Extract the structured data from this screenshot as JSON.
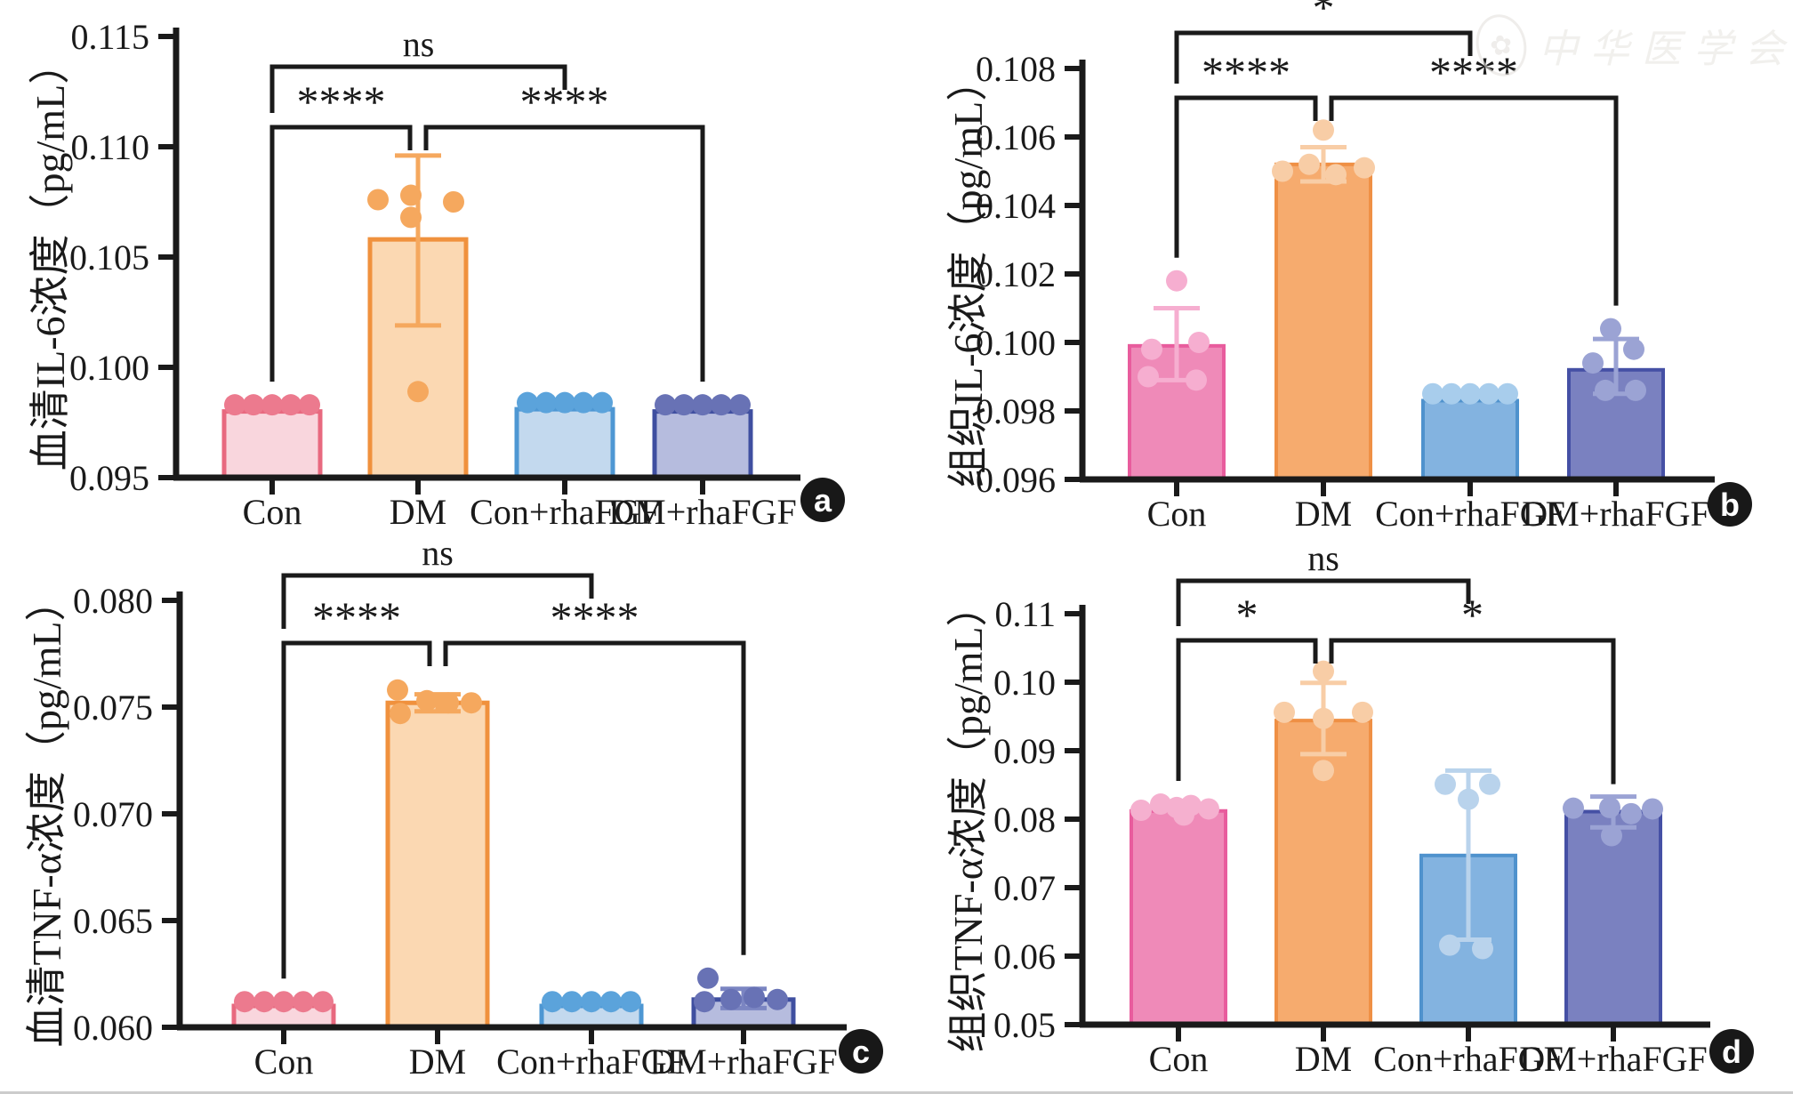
{
  "watermark": {
    "seal_icon": "seal-icon",
    "text": "中华医学会"
  },
  "panel_badges": [
    "a",
    "b",
    "c",
    "d"
  ],
  "chart_data": [
    {
      "type": "bar",
      "panel": "a",
      "ylabel": "血清IL-6浓度（pg/mL）",
      "ylim": [
        0.095,
        0.115
      ],
      "yticks": [
        {
          "v": 0.115,
          "t": "0.115"
        },
        {
          "v": 0.11,
          "t": "0.110"
        },
        {
          "v": 0.105,
          "t": "0.105"
        },
        {
          "v": 0.1,
          "t": "0.100"
        },
        {
          "v": 0.095,
          "t": "0.095"
        }
      ],
      "categories": [
        "Con",
        "DM",
        "Con+rhaFGF",
        "DM+rhaFGF"
      ],
      "values": [
        0.098,
        0.1058,
        0.0981,
        0.098
      ],
      "errors": [
        null,
        [
          0.1019,
          0.1096
        ],
        null,
        null
      ],
      "points": [
        [
          [
            -42,
            0.0983
          ],
          [
            -21,
            0.0983
          ],
          [
            0,
            0.0983
          ],
          [
            21,
            0.0983
          ],
          [
            42,
            0.0983
          ]
        ],
        [
          [
            -45,
            0.1076
          ],
          [
            -8,
            0.1078
          ],
          [
            -8,
            0.1068
          ],
          [
            40,
            0.1075
          ],
          [
            0,
            0.0989
          ]
        ],
        [
          [
            -42,
            0.0984
          ],
          [
            -21,
            0.0984
          ],
          [
            0,
            0.0984
          ],
          [
            21,
            0.0984
          ],
          [
            42,
            0.0984
          ]
        ],
        [
          [
            -42,
            0.0983
          ],
          [
            -21,
            0.0983
          ],
          [
            0,
            0.0983
          ],
          [
            21,
            0.0983
          ],
          [
            42,
            0.0983
          ]
        ]
      ],
      "colors": [
        {
          "fill": "#f9d6dd",
          "stroke": "#e8697f",
          "dot": "#ec7a8e",
          "err": "#ec7a8e"
        },
        {
          "fill": "#fbd8b2",
          "stroke": "#f0913d",
          "dot": "#f5a85e",
          "err": "#f5a85e"
        },
        {
          "fill": "#c3d9ee",
          "stroke": "#4e97d3",
          "dot": "#5ba3db",
          "err": "#5ba3db"
        },
        {
          "fill": "#b6bcde",
          "stroke": "#3f4fa0",
          "dot": "#6872b5",
          "err": "#6872b5"
        }
      ],
      "significance": [
        {
          "between": [
            "Con",
            "Con+rhaFGF"
          ],
          "label": "ns"
        },
        {
          "between": [
            "Con",
            "DM"
          ],
          "label": "****"
        },
        {
          "between": [
            "DM",
            "DM+rhaFGF"
          ],
          "label": "****"
        }
      ]
    },
    {
      "type": "bar",
      "panel": "b",
      "ylabel": "组织IL-6浓度（pg/mL）",
      "ylim": [
        0.096,
        0.108
      ],
      "yticks": [
        {
          "v": 0.108,
          "t": "0.108"
        },
        {
          "v": 0.106,
          "t": "0.106"
        },
        {
          "v": 0.104,
          "t": "0.104"
        },
        {
          "v": 0.102,
          "t": "0.102"
        },
        {
          "v": 0.1,
          "t": "0.100"
        },
        {
          "v": 0.098,
          "t": "0.098"
        },
        {
          "v": 0.096,
          "t": "0.096"
        }
      ],
      "categories": [
        "Con",
        "DM",
        "Con+rhaFGF",
        "DM+rhaFGF"
      ],
      "values": [
        0.0999,
        0.1052,
        0.0983,
        0.0992
      ],
      "errors": [
        [
          0.0989,
          0.101
        ],
        [
          0.1047,
          0.1057
        ],
        null,
        [
          0.0985,
          0.1001
        ]
      ],
      "points": [
        [
          [
            0,
            0.1018
          ],
          [
            -28,
            0.0998
          ],
          [
            25,
            0.1
          ],
          [
            -32,
            0.099
          ],
          [
            22,
            0.0989
          ]
        ],
        [
          [
            0,
            0.1062
          ],
          [
            -46,
            0.105
          ],
          [
            -16,
            0.1052
          ],
          [
            14,
            0.1049
          ],
          [
            46,
            0.1051
          ]
        ],
        [
          [
            -42,
            0.0985
          ],
          [
            -21,
            0.0985
          ],
          [
            0,
            0.0985
          ],
          [
            21,
            0.0985
          ],
          [
            42,
            0.0985
          ]
        ],
        [
          [
            -6,
            0.1004
          ],
          [
            20,
            0.0998
          ],
          [
            -26,
            0.0994
          ],
          [
            -12,
            0.0986
          ],
          [
            22,
            0.0986
          ]
        ]
      ],
      "colors": [
        {
          "fill": "#ef8ab8",
          "stroke": "#e85c9d",
          "dot": "#f6aed0",
          "err": "#f6aed0"
        },
        {
          "fill": "#f6ab6e",
          "stroke": "#ef9045",
          "dot": "#f8cda6",
          "err": "#f8cda6"
        },
        {
          "fill": "#83b3e0",
          "stroke": "#4f92cd",
          "dot": "#a8cdec",
          "err": "#a8cdec"
        },
        {
          "fill": "#7a81c0",
          "stroke": "#4550a5",
          "dot": "#9ba3d4",
          "err": "#9ba3d4"
        }
      ],
      "significance": [
        {
          "between": [
            "Con",
            "Con+rhaFGF"
          ],
          "label": "*"
        },
        {
          "between": [
            "Con",
            "DM"
          ],
          "label": "****"
        },
        {
          "between": [
            "DM",
            "DM+rhaFGF"
          ],
          "label": "****"
        }
      ]
    },
    {
      "type": "bar",
      "panel": "c",
      "ylabel": "血清TNF-α浓度（pg/mL）",
      "ylim": [
        0.06,
        0.08
      ],
      "yticks": [
        {
          "v": 0.08,
          "t": "0.080"
        },
        {
          "v": 0.075,
          "t": "0.075"
        },
        {
          "v": 0.07,
          "t": "0.070"
        },
        {
          "v": 0.065,
          "t": "0.065"
        },
        {
          "v": 0.06,
          "t": "0.060"
        }
      ],
      "categories": [
        "Con",
        "DM",
        "Con+rhaFGF",
        "DM+rhaFGF"
      ],
      "values": [
        0.061,
        0.0752,
        0.061,
        0.0613
      ],
      "errors": [
        null,
        [
          0.0748,
          0.0756
        ],
        null,
        [
          0.0609,
          0.0618
        ]
      ],
      "points": [
        [
          [
            -44,
            0.0612
          ],
          [
            -22,
            0.0612
          ],
          [
            0,
            0.0612
          ],
          [
            22,
            0.0612
          ],
          [
            44,
            0.0612
          ]
        ],
        [
          [
            -45,
            0.0758
          ],
          [
            -42,
            0.0747
          ],
          [
            -12,
            0.0753
          ],
          [
            12,
            0.0752
          ],
          [
            38,
            0.0752
          ]
        ],
        [
          [
            -44,
            0.0612
          ],
          [
            -22,
            0.0612
          ],
          [
            0,
            0.0612
          ],
          [
            22,
            0.0612
          ],
          [
            44,
            0.0612
          ]
        ],
        [
          [
            -40,
            0.0623
          ],
          [
            -44,
            0.0612
          ],
          [
            -14,
            0.0613
          ],
          [
            12,
            0.0614
          ],
          [
            38,
            0.0613
          ]
        ]
      ],
      "colors": [
        {
          "fill": "#f9d6dd",
          "stroke": "#e8697f",
          "dot": "#ec7a8e",
          "err": "#ec7a8e"
        },
        {
          "fill": "#fbd8b2",
          "stroke": "#f0913d",
          "dot": "#f5a85e",
          "err": "#f5a85e"
        },
        {
          "fill": "#c3d9ee",
          "stroke": "#4e97d3",
          "dot": "#5ba3db",
          "err": "#5ba3db"
        },
        {
          "fill": "#b6bcde",
          "stroke": "#3f4fa0",
          "dot": "#6872b5",
          "err": "#7b85c2"
        }
      ],
      "significance": [
        {
          "between": [
            "Con",
            "Con+rhaFGF"
          ],
          "label": "ns"
        },
        {
          "between": [
            "Con",
            "DM"
          ],
          "label": "****"
        },
        {
          "between": [
            "DM",
            "DM+rhaFGF"
          ],
          "label": "****"
        }
      ]
    },
    {
      "type": "bar",
      "panel": "d",
      "ylabel": "组织TNF-α浓度（pg/mL）",
      "ylim": [
        0.05,
        0.11
      ],
      "yticks": [
        {
          "v": 0.11,
          "t": "0.11"
        },
        {
          "v": 0.1,
          "t": "0.10"
        },
        {
          "v": 0.09,
          "t": "0.09"
        },
        {
          "v": 0.08,
          "t": "0.08"
        },
        {
          "v": 0.07,
          "t": "0.07"
        },
        {
          "v": 0.06,
          "t": "0.06"
        },
        {
          "v": 0.05,
          "t": "0.05"
        }
      ],
      "categories": [
        "Con",
        "DM",
        "Con+rhaFGF",
        "DM+rhaFGF"
      ],
      "values": [
        0.0812,
        0.0944,
        0.0747,
        0.0811
      ],
      "errors": [
        null,
        [
          0.0895,
          0.0999
        ],
        [
          0.0624,
          0.0871
        ],
        [
          0.0788,
          0.0833
        ]
      ],
      "points": [
        [
          [
            -42,
            0.0813
          ],
          [
            -20,
            0.0822
          ],
          [
            -2,
            0.0817
          ],
          [
            14,
            0.082
          ],
          [
            34,
            0.0815
          ],
          [
            6,
            0.0806
          ]
        ],
        [
          [
            0,
            0.1016
          ],
          [
            -44,
            0.0956
          ],
          [
            44,
            0.0956
          ],
          [
            0,
            0.0947
          ],
          [
            0,
            0.0871
          ]
        ],
        [
          [
            -26,
            0.0851
          ],
          [
            24,
            0.0851
          ],
          [
            0,
            0.0829
          ],
          [
            -21,
            0.0616
          ],
          [
            16,
            0.0611
          ]
        ],
        [
          [
            -45,
            0.0816
          ],
          [
            -4,
            0.0817
          ],
          [
            44,
            0.0815
          ],
          [
            -2,
            0.0776
          ],
          [
            20,
            0.0808
          ]
        ]
      ],
      "colors": [
        {
          "fill": "#ef8ab8",
          "stroke": "#e85c9d",
          "dot": "#f5b0cf",
          "err": "#f5b0cf"
        },
        {
          "fill": "#f6ab6e",
          "stroke": "#ef9045",
          "dot": "#f8cda6",
          "err": "#f8cda6"
        },
        {
          "fill": "#83b3e0",
          "stroke": "#4f92cd",
          "dot": "#b9d3ec",
          "err": "#b9d3ec"
        },
        {
          "fill": "#7a81c0",
          "stroke": "#4550a5",
          "dot": "#9ba3d4",
          "err": "#9ba3d4"
        }
      ],
      "significance": [
        {
          "between": [
            "Con",
            "Con+rhaFGF"
          ],
          "label": "ns"
        },
        {
          "between": [
            "Con",
            "DM"
          ],
          "label": "*"
        },
        {
          "between": [
            "DM",
            "DM+rhaFGF"
          ],
          "label": "*"
        }
      ]
    }
  ]
}
